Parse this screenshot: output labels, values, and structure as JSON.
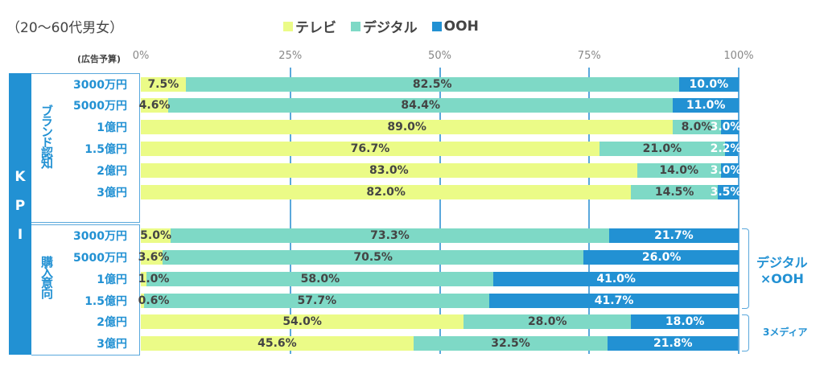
{
  "chart_data": {
    "type": "bar",
    "orientation": "horizontal-stacked-100",
    "subtitle": "（20〜60代男女）",
    "budget_header": "(広告予算)",
    "xticks": [
      "0%",
      "25%",
      "50%",
      "75%",
      "100%"
    ],
    "xlim": [
      0,
      100
    ],
    "grid": true,
    "legend_position": "top",
    "legend": [
      {
        "name": "テレビ",
        "color": "#ebfb87"
      },
      {
        "name": "デジタル",
        "color": "#7ed9c6"
      },
      {
        "name": "OOH",
        "color": "#2291d3"
      }
    ],
    "kpi_label": [
      "K",
      "P",
      "I"
    ],
    "groups": [
      {
        "name": "ブランド認知",
        "rows": [
          {
            "budget": "3000万円",
            "values": [
              7.5,
              82.5,
              10.0
            ]
          },
          {
            "budget": "5000万円",
            "values": [
              4.6,
              84.4,
              11.0
            ]
          },
          {
            "budget": "1億円",
            "values": [
              89.0,
              8.0,
              3.0
            ]
          },
          {
            "budget": "1.5億円",
            "values": [
              76.7,
              21.0,
              2.2
            ]
          },
          {
            "budget": "2億円",
            "values": [
              83.0,
              14.0,
              3.0
            ]
          },
          {
            "budget": "3億円",
            "values": [
              82.0,
              14.5,
              3.5
            ]
          }
        ]
      },
      {
        "name": "購入意向",
        "rows": [
          {
            "budget": "3000万円",
            "values": [
              5.0,
              73.3,
              21.7
            ]
          },
          {
            "budget": "5000万円",
            "values": [
              3.6,
              70.5,
              26.0
            ]
          },
          {
            "budget": "1億円",
            "values": [
              1.0,
              58.0,
              41.0
            ]
          },
          {
            "budget": "1.5億円",
            "values": [
              0.6,
              57.7,
              41.7
            ]
          },
          {
            "budget": "2億円",
            "values": [
              54.0,
              28.0,
              18.0
            ]
          },
          {
            "budget": "3億円",
            "values": [
              45.6,
              32.5,
              21.8
            ]
          }
        ]
      }
    ],
    "annotations": [
      {
        "text": "デジタル\n×OOH",
        "rows": "購入意向 3000万円〜1.5億円"
      },
      {
        "text": "3メディア",
        "rows": "購入意向 2億円〜3億円"
      }
    ]
  }
}
